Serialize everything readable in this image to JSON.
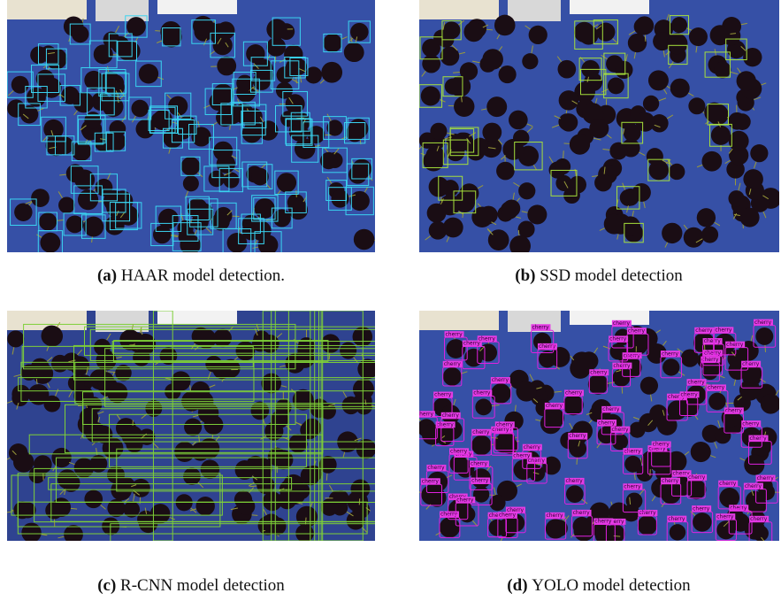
{
  "panels": [
    {
      "label": "(a)",
      "caption": "HAAR model detection."
    },
    {
      "label": "(b)",
      "caption": "SSD model detection"
    },
    {
      "label": "(c)",
      "caption": "R-CNN model detection"
    },
    {
      "label": "(d)",
      "caption": "YOLO model detection",
      "box_label": "cherry"
    }
  ]
}
